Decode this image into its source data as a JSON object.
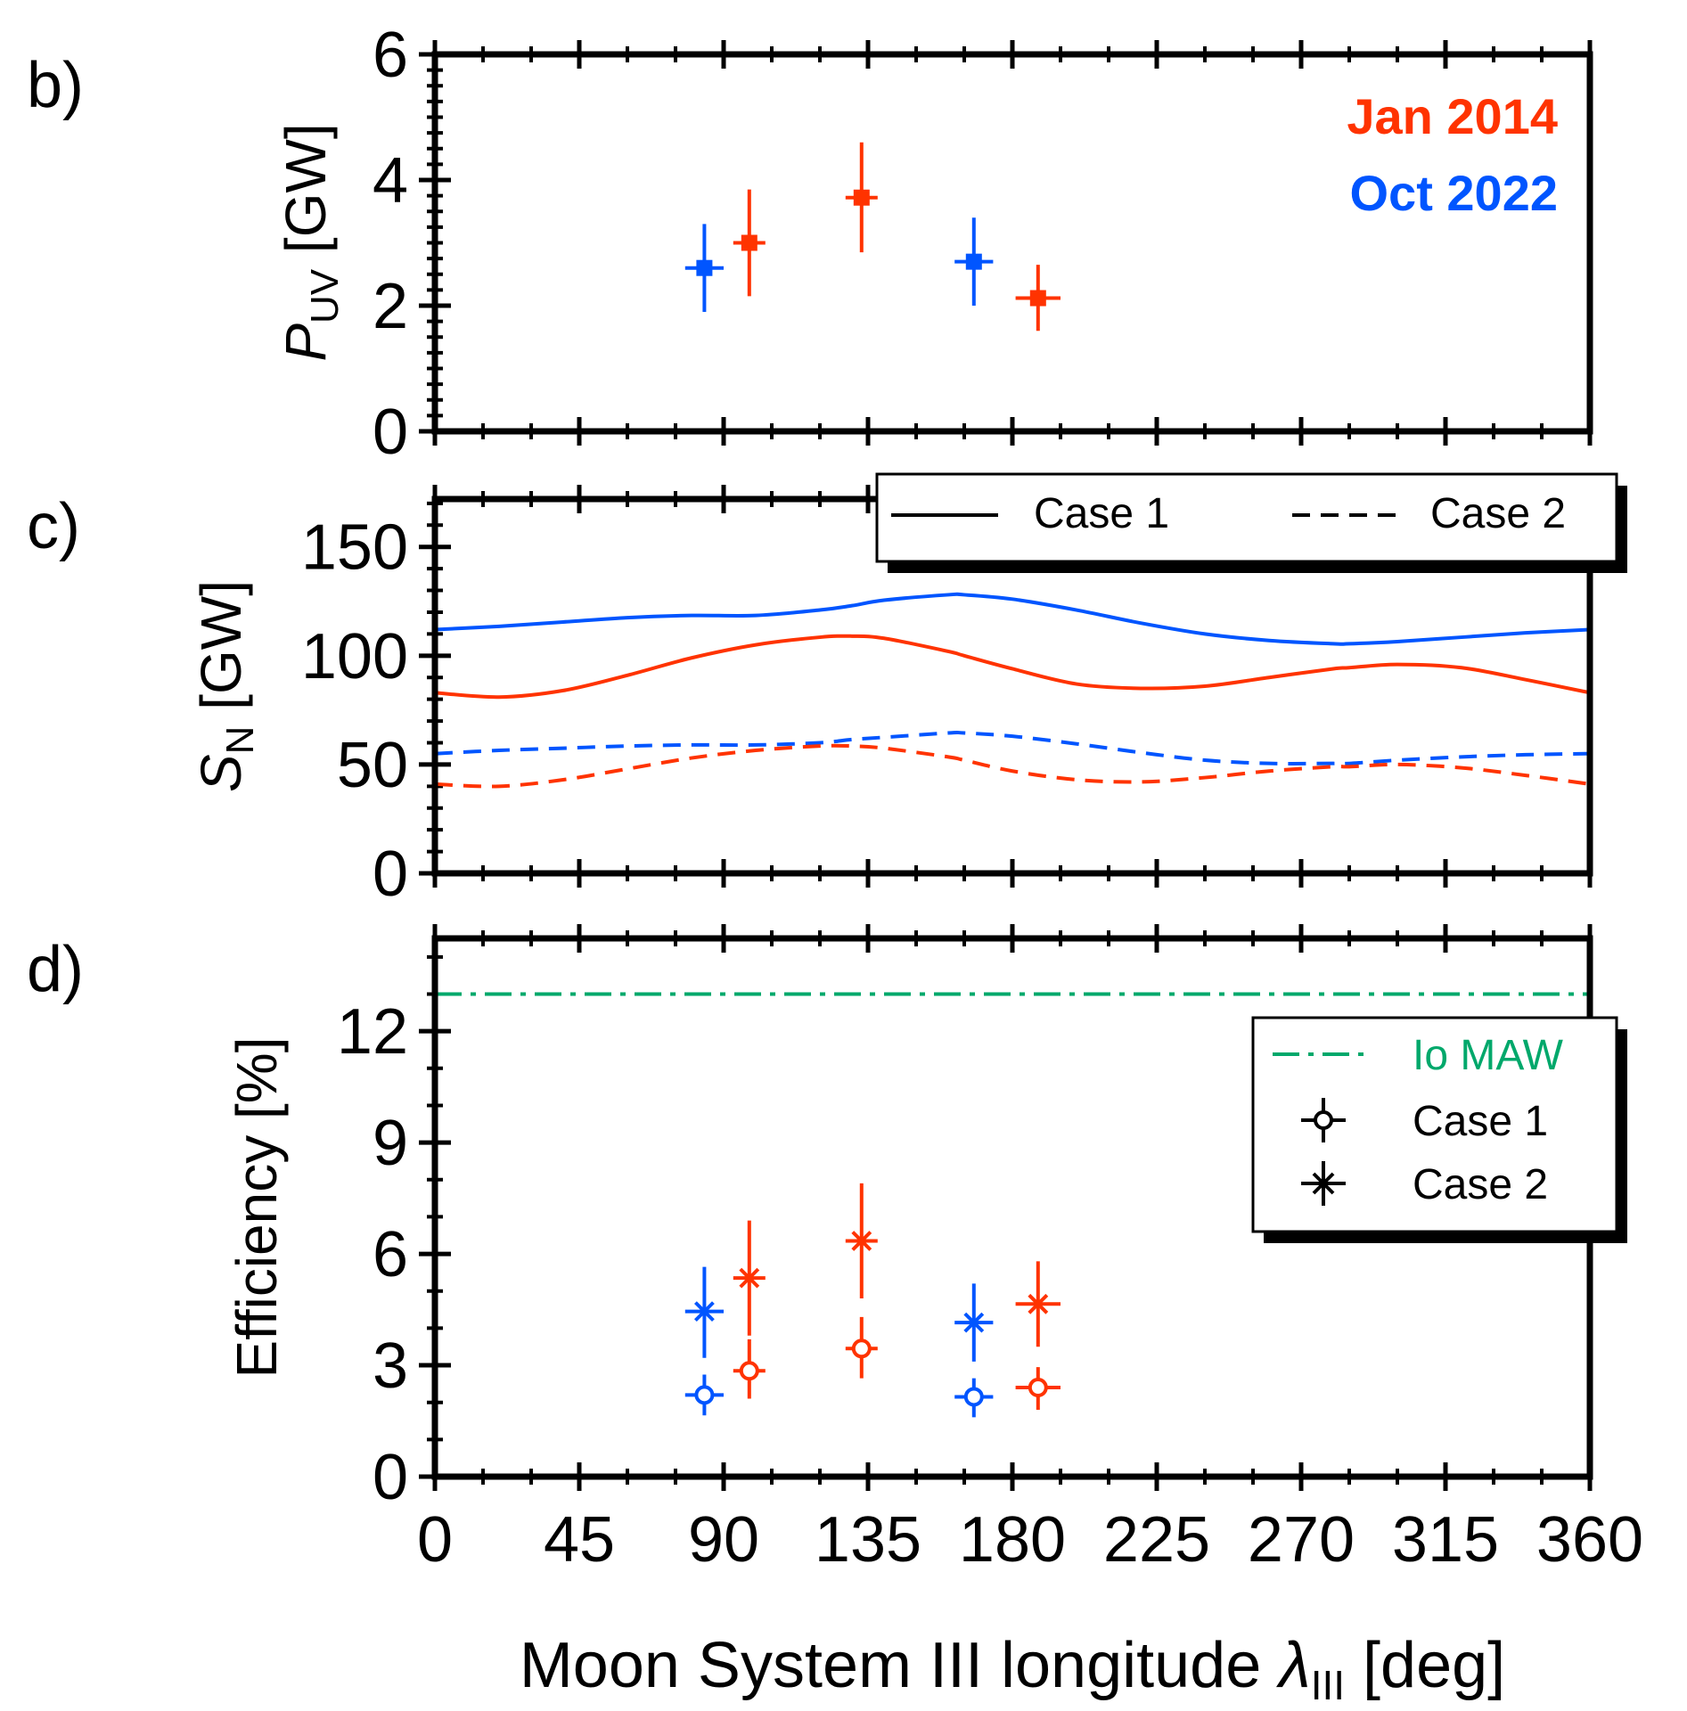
{
  "colors": {
    "jan2014": "#ff3300",
    "oct2022": "#0055ff",
    "io_maw": "#00a86b",
    "axis": "#000000"
  },
  "panels": {
    "b": {
      "label": "b)"
    },
    "c": {
      "label": "c)"
    },
    "d": {
      "label": "d)"
    }
  },
  "xaxis": {
    "label_main": "Moon System III longitude ",
    "label_symbol": "λ",
    "label_sub": "III",
    "label_unit": " [deg]"
  },
  "chart_data": [
    {
      "panel": "b",
      "type": "scatter",
      "ylabel_symbol": "P",
      "ylabel_sub": "UV",
      "ylabel_unit": " [GW]",
      "xlim": [
        0,
        360
      ],
      "ylim": [
        0,
        6
      ],
      "xticks": [
        "0",
        "45",
        "90",
        "135",
        "180",
        "225",
        "270",
        "315",
        "360"
      ],
      "yticks": [
        "0",
        "2",
        "4",
        "6"
      ],
      "annotations": [
        "Jan 2014",
        "Oct 2022"
      ],
      "series": [
        {
          "name": "Jan 2014",
          "color_key": "jan2014",
          "marker": "square",
          "points": [
            {
              "x": 98,
              "xerr": 5,
              "y": 3.0,
              "ylo": 2.15,
              "yhi": 3.85
            },
            {
              "x": 133,
              "xerr": 5,
              "y": 3.72,
              "ylo": 2.85,
              "yhi": 4.6
            },
            {
              "x": 188,
              "xerr": 7,
              "y": 2.12,
              "ylo": 1.6,
              "yhi": 2.65
            }
          ]
        },
        {
          "name": "Oct 2022",
          "color_key": "oct2022",
          "marker": "square",
          "points": [
            {
              "x": 84,
              "xerr": 6,
              "y": 2.6,
              "ylo": 1.9,
              "yhi": 3.3
            },
            {
              "x": 168,
              "xerr": 6,
              "y": 2.7,
              "ylo": 2.0,
              "yhi": 3.4
            }
          ]
        }
      ]
    },
    {
      "panel": "c",
      "type": "line",
      "ylabel_symbol": "S",
      "ylabel_sub": "N",
      "ylabel_unit": " [GW]",
      "xlim": [
        0,
        360
      ],
      "ylim": [
        0,
        172
      ],
      "xticks": [
        "0",
        "45",
        "90",
        "135",
        "180",
        "225",
        "270",
        "315",
        "360"
      ],
      "yticks": [
        "0",
        "50",
        "100",
        "150"
      ],
      "legend": {
        "placement": "top-right",
        "entries": [
          "Case 1",
          "Case 2"
        ]
      },
      "x": [
        0,
        20,
        40,
        60,
        80,
        100,
        120,
        130,
        140,
        160,
        165,
        180,
        200,
        220,
        240,
        260,
        280,
        285,
        300,
        320,
        340,
        360
      ],
      "series": [
        {
          "name": "Case 1",
          "color_key": "oct2022",
          "dash": "solid",
          "values": [
            112,
            113.5,
            115.5,
            117.5,
            118.5,
            118.5,
            121,
            123,
            125.5,
            128,
            128,
            126,
            121,
            115,
            110,
            107,
            105.5,
            105.5,
            106.5,
            108.5,
            110.5,
            112
          ]
        },
        {
          "name": "Case 1",
          "color_key": "jan2014",
          "dash": "solid",
          "values": [
            83,
            81,
            84,
            91,
            99,
            105,
            108.5,
            109,
            108,
            102,
            100,
            94,
            87,
            85,
            86,
            90,
            94,
            94.5,
            96,
            94.5,
            89,
            83
          ]
        },
        {
          "name": "Case 2",
          "color_key": "oct2022",
          "dash": "dashed",
          "values": [
            55,
            56.5,
            57.5,
            58.5,
            59,
            59,
            60,
            61.5,
            62.5,
            64.5,
            64.5,
            63,
            59.5,
            55.5,
            52,
            50.5,
            50.5,
            50.5,
            52,
            53.5,
            54.5,
            55
          ]
        },
        {
          "name": "Case 2",
          "color_key": "jan2014",
          "dash": "dashed",
          "values": [
            41,
            40,
            43,
            48,
            53,
            56.5,
            58.5,
            58.5,
            57.5,
            53.5,
            52,
            47,
            43,
            42,
            44,
            47,
            49,
            49,
            50,
            48.5,
            45,
            41
          ]
        }
      ]
    },
    {
      "panel": "d",
      "type": "scatter",
      "ylabel": "Efficiency [%]",
      "xlim": [
        0,
        360
      ],
      "ylim": [
        0,
        14.5
      ],
      "xticks": [
        "0",
        "45",
        "90",
        "135",
        "180",
        "225",
        "270",
        "315",
        "360"
      ],
      "yticks": [
        "0",
        "3",
        "6",
        "9",
        "12"
      ],
      "legend": {
        "placement": "right",
        "entries": [
          "Io MAW",
          "Case 1",
          "Case 2"
        ]
      },
      "io_maw": 13,
      "series": [
        {
          "name": "Case 1",
          "color_key": "jan2014",
          "marker": "circle",
          "points": [
            {
              "x": 98,
              "xerr": 5,
              "y": 2.85,
              "ylo": 2.1,
              "yhi": 3.7
            },
            {
              "x": 133,
              "xerr": 5,
              "y": 3.45,
              "ylo": 2.65,
              "yhi": 4.3
            },
            {
              "x": 188,
              "xerr": 7,
              "y": 2.4,
              "ylo": 1.8,
              "yhi": 2.95
            }
          ]
        },
        {
          "name": "Case 1",
          "color_key": "oct2022",
          "marker": "circle",
          "points": [
            {
              "x": 84,
              "xerr": 6,
              "y": 2.2,
              "ylo": 1.65,
              "yhi": 2.75
            },
            {
              "x": 168,
              "xerr": 6,
              "y": 2.15,
              "ylo": 1.6,
              "yhi": 2.65
            }
          ]
        },
        {
          "name": "Case 2",
          "color_key": "jan2014",
          "marker": "star",
          "points": [
            {
              "x": 98,
              "xerr": 5,
              "y": 5.35,
              "ylo": 3.8,
              "yhi": 6.9
            },
            {
              "x": 133,
              "xerr": 5,
              "y": 6.35,
              "ylo": 4.8,
              "yhi": 7.9
            },
            {
              "x": 188,
              "xerr": 7,
              "y": 4.65,
              "ylo": 3.5,
              "yhi": 5.8
            }
          ]
        },
        {
          "name": "Case 2",
          "color_key": "oct2022",
          "marker": "star",
          "points": [
            {
              "x": 84,
              "xerr": 6,
              "y": 4.45,
              "ylo": 3.2,
              "yhi": 5.65
            },
            {
              "x": 168,
              "xerr": 6,
              "y": 4.15,
              "ylo": 3.1,
              "yhi": 5.2
            }
          ]
        }
      ]
    }
  ]
}
